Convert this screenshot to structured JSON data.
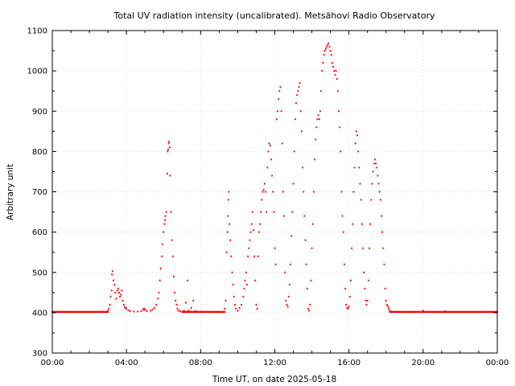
{
  "chart_data": {
    "type": "scatter",
    "title": "Total UV radiation intensity (uncalibrated). Metsähovi Radio Observatory",
    "xlabel": "Time UT, on date 2025-05-18",
    "ylabel": "Arbitrary unit",
    "xlim": [
      0,
      24
    ],
    "ylim": [
      300,
      1100
    ],
    "xticks": [
      0,
      4,
      8,
      12,
      16,
      20,
      24
    ],
    "xtick_labels": [
      "00:00",
      "04:00",
      "08:00",
      "12:00",
      "16:00",
      "20:00",
      "00:00"
    ],
    "yticks": [
      300,
      400,
      500,
      600,
      700,
      800,
      900,
      1000,
      1100
    ],
    "ytick_labels": [
      "300",
      "400",
      "500",
      "600",
      "700",
      "800",
      "900",
      "1000",
      "1100"
    ],
    "grid": true,
    "marker_color": "#ff0000",
    "series": [
      {
        "x_unit": "hours UT",
        "baseline": 402,
        "baseline_ranges": [
          [
            0,
            3.0
          ],
          [
            7.0,
            9.3
          ],
          [
            18.2,
            24
          ]
        ],
        "points": [
          [
            3.0,
            405
          ],
          [
            3.05,
            410
          ],
          [
            3.1,
            420
          ],
          [
            3.15,
            440
          ],
          [
            3.2,
            455
          ],
          [
            3.22,
            495
          ],
          [
            3.25,
            503
          ],
          [
            3.3,
            480
          ],
          [
            3.35,
            470
          ],
          [
            3.4,
            450
          ],
          [
            3.45,
            435
          ],
          [
            3.5,
            455
          ],
          [
            3.55,
            460
          ],
          [
            3.6,
            450
          ],
          [
            3.65,
            440
          ],
          [
            3.7,
            445
          ],
          [
            3.75,
            455
          ],
          [
            3.8,
            430
          ],
          [
            3.85,
            420
          ],
          [
            3.9,
            415
          ],
          [
            3.95,
            412
          ],
          [
            4.0,
            410
          ],
          [
            4.1,
            406
          ],
          [
            4.2,
            404
          ],
          [
            4.4,
            403
          ],
          [
            4.6,
            403
          ],
          [
            4.8,
            404
          ],
          [
            4.9,
            408
          ],
          [
            4.95,
            410
          ],
          [
            5.0,
            407
          ],
          [
            5.1,
            404
          ],
          [
            5.3,
            405
          ],
          [
            5.4,
            408
          ],
          [
            5.5,
            412
          ],
          [
            5.6,
            420
          ],
          [
            5.7,
            435
          ],
          [
            5.75,
            450
          ],
          [
            5.8,
            480
          ],
          [
            5.85,
            510
          ],
          [
            5.9,
            540
          ],
          [
            5.95,
            570
          ],
          [
            6.0,
            600
          ],
          [
            6.05,
            620
          ],
          [
            6.08,
            630
          ],
          [
            6.1,
            640
          ],
          [
            6.15,
            650
          ],
          [
            6.2,
            745
          ],
          [
            6.22,
            800
          ],
          [
            6.25,
            805
          ],
          [
            6.28,
            820
          ],
          [
            6.3,
            825
          ],
          [
            6.33,
            810
          ],
          [
            6.35,
            740
          ],
          [
            6.4,
            650
          ],
          [
            6.45,
            580
          ],
          [
            6.5,
            540
          ],
          [
            6.55,
            490
          ],
          [
            6.6,
            450
          ],
          [
            6.65,
            430
          ],
          [
            6.7,
            420
          ],
          [
            6.75,
            410
          ],
          [
            6.8,
            405
          ],
          [
            6.9,
            404
          ],
          [
            7.1,
            405
          ],
          [
            7.2,
            425
          ],
          [
            7.3,
            480
          ],
          [
            7.35,
            405
          ],
          [
            7.5,
            412
          ],
          [
            7.6,
            430
          ],
          [
            7.7,
            404
          ],
          [
            7.8,
            403
          ],
          [
            9.3,
            410
          ],
          [
            9.35,
            430
          ],
          [
            9.4,
            550
          ],
          [
            9.45,
            600
          ],
          [
            9.48,
            640
          ],
          [
            9.5,
            680
          ],
          [
            9.52,
            700
          ],
          [
            9.55,
            620
          ],
          [
            9.6,
            580
          ],
          [
            9.65,
            540
          ],
          [
            9.7,
            500
          ],
          [
            9.75,
            470
          ],
          [
            9.8,
            440
          ],
          [
            9.85,
            420
          ],
          [
            9.9,
            410
          ],
          [
            10.0,
            405
          ],
          [
            10.1,
            412
          ],
          [
            10.2,
            420
          ],
          [
            10.3,
            440
          ],
          [
            10.35,
            460
          ],
          [
            10.4,
            480
          ],
          [
            10.45,
            500
          ],
          [
            10.5,
            470
          ],
          [
            10.55,
            540
          ],
          [
            10.6,
            560
          ],
          [
            10.65,
            580
          ],
          [
            10.7,
            600
          ],
          [
            10.75,
            620
          ],
          [
            10.8,
            650
          ],
          [
            10.85,
            605
          ],
          [
            10.9,
            540
          ],
          [
            10.95,
            480
          ],
          [
            11.0,
            420
          ],
          [
            11.05,
            410
          ],
          [
            11.1,
            540
          ],
          [
            11.15,
            600
          ],
          [
            11.2,
            620
          ],
          [
            11.25,
            650
          ],
          [
            11.3,
            680
          ],
          [
            11.35,
            700
          ],
          [
            11.4,
            705
          ],
          [
            11.45,
            720
          ],
          [
            11.5,
            700
          ],
          [
            11.55,
            650
          ],
          [
            11.6,
            760
          ],
          [
            11.65,
            800
          ],
          [
            11.7,
            820
          ],
          [
            11.75,
            815
          ],
          [
            11.8,
            780
          ],
          [
            11.85,
            740
          ],
          [
            11.9,
            700
          ],
          [
            11.95,
            650
          ],
          [
            12.0,
            560
          ],
          [
            12.05,
            520
          ],
          [
            12.1,
            880
          ],
          [
            12.15,
            900
          ],
          [
            12.2,
            930
          ],
          [
            12.25,
            950
          ],
          [
            12.3,
            960
          ],
          [
            12.35,
            900
          ],
          [
            12.4,
            820
          ],
          [
            12.45,
            700
          ],
          [
            12.5,
            640
          ],
          [
            12.55,
            500
          ],
          [
            12.6,
            430
          ],
          [
            12.65,
            420
          ],
          [
            12.7,
            415
          ],
          [
            12.75,
            440
          ],
          [
            12.8,
            470
          ],
          [
            12.85,
            520
          ],
          [
            12.9,
            590
          ],
          [
            12.95,
            650
          ],
          [
            13.0,
            720
          ],
          [
            13.05,
            800
          ],
          [
            13.1,
            880
          ],
          [
            13.15,
            920
          ],
          [
            13.2,
            940
          ],
          [
            13.25,
            950
          ],
          [
            13.3,
            960
          ],
          [
            13.35,
            970
          ],
          [
            13.4,
            900
          ],
          [
            13.45,
            850
          ],
          [
            13.5,
            760
          ],
          [
            13.55,
            700
          ],
          [
            13.6,
            640
          ],
          [
            13.65,
            580
          ],
          [
            13.7,
            520
          ],
          [
            13.75,
            460
          ],
          [
            13.8,
            410
          ],
          [
            13.85,
            405
          ],
          [
            13.9,
            420
          ],
          [
            13.95,
            480
          ],
          [
            14.0,
            560
          ],
          [
            14.05,
            620
          ],
          [
            14.1,
            700
          ],
          [
            14.15,
            780
          ],
          [
            14.2,
            830
          ],
          [
            14.25,
            860
          ],
          [
            14.3,
            880
          ],
          [
            14.35,
            890
          ],
          [
            14.4,
            880
          ],
          [
            14.45,
            900
          ],
          [
            14.5,
            950
          ],
          [
            14.55,
            1000
          ],
          [
            14.6,
            1020
          ],
          [
            14.65,
            1040
          ],
          [
            14.7,
            1050
          ],
          [
            14.75,
            1055
          ],
          [
            14.8,
            1060
          ],
          [
            14.85,
            1065
          ],
          [
            14.9,
            1068
          ],
          [
            14.95,
            1060
          ],
          [
            15.0,
            1050
          ],
          [
            15.05,
            1040
          ],
          [
            15.1,
            1020
          ],
          [
            15.15,
            1010
          ],
          [
            15.2,
            1000
          ],
          [
            15.25,
            990
          ],
          [
            15.3,
            1000
          ],
          [
            15.35,
            980
          ],
          [
            15.4,
            950
          ],
          [
            15.45,
            900
          ],
          [
            15.5,
            860
          ],
          [
            15.55,
            800
          ],
          [
            15.6,
            700
          ],
          [
            15.65,
            640
          ],
          [
            15.7,
            600
          ],
          [
            15.75,
            520
          ],
          [
            15.8,
            460
          ],
          [
            15.85,
            420
          ],
          [
            15.9,
            412
          ],
          [
            15.95,
            410
          ],
          [
            16.0,
            415
          ],
          [
            16.05,
            440
          ],
          [
            16.1,
            480
          ],
          [
            16.15,
            560
          ],
          [
            16.2,
            620
          ],
          [
            16.25,
            700
          ],
          [
            16.3,
            760
          ],
          [
            16.35,
            820
          ],
          [
            16.4,
            850
          ],
          [
            16.45,
            840
          ],
          [
            16.5,
            800
          ],
          [
            16.55,
            760
          ],
          [
            16.6,
            720
          ],
          [
            16.65,
            680
          ],
          [
            16.7,
            620
          ],
          [
            16.75,
            560
          ],
          [
            16.8,
            500
          ],
          [
            16.85,
            460
          ],
          [
            16.9,
            430
          ],
          [
            16.95,
            420
          ],
          [
            17.0,
            430
          ],
          [
            17.05,
            480
          ],
          [
            17.1,
            560
          ],
          [
            17.15,
            620
          ],
          [
            17.2,
            680
          ],
          [
            17.25,
            720
          ],
          [
            17.3,
            750
          ],
          [
            17.35,
            770
          ],
          [
            17.4,
            780
          ],
          [
            17.45,
            770
          ],
          [
            17.5,
            760
          ],
          [
            17.55,
            740
          ],
          [
            17.6,
            720
          ],
          [
            17.65,
            700
          ],
          [
            17.7,
            680
          ],
          [
            17.75,
            640
          ],
          [
            17.8,
            600
          ],
          [
            17.85,
            560
          ],
          [
            17.9,
            520
          ],
          [
            17.95,
            460
          ],
          [
            18.0,
            430
          ],
          [
            18.05,
            420
          ],
          [
            18.1,
            415
          ],
          [
            18.15,
            410
          ],
          [
            18.2,
            405
          ],
          [
            20.0,
            405
          ],
          [
            21.2,
            404
          ]
        ]
      }
    ]
  }
}
